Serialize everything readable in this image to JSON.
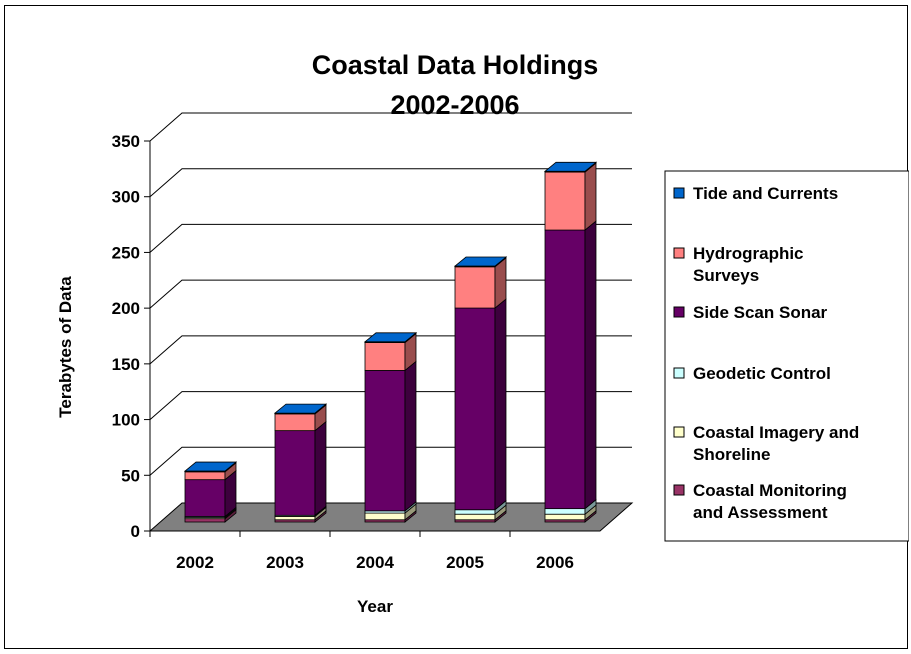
{
  "chart_data": {
    "type": "bar",
    "stacked": true,
    "three_d": true,
    "title": "Coastal Data Holdings",
    "subtitle": "2002-2006",
    "xlabel": "Year",
    "ylabel": "Terabytes of Data",
    "ylim": [
      0,
      350
    ],
    "yticks": [
      "0",
      "50",
      "100",
      "150",
      "200",
      "250",
      "300",
      "350"
    ],
    "categories": [
      "2002",
      "2003",
      "2004",
      "2005",
      "2006"
    ],
    "grid": true,
    "legend_position": "right",
    "series": [
      {
        "name": "Coastal Monitoring and Assessment",
        "color": "#993366",
        "values": [
          3,
          2,
          2,
          2,
          2
        ]
      },
      {
        "name": "Coastal Imagery and Shoreline",
        "color": "#FFFFCC",
        "values": [
          1,
          3,
          6,
          5,
          5
        ]
      },
      {
        "name": "Geodetic Control",
        "color": "#CCFFFF",
        "values": [
          1,
          1,
          2,
          4,
          5
        ]
      },
      {
        "name": "Side Scan Sonar",
        "color": "#660066",
        "values": [
          33,
          76,
          126,
          181,
          250
        ]
      },
      {
        "name": "Hydrographic Surveys",
        "color": "#FF8080",
        "values": [
          7,
          15,
          25,
          37,
          52
        ]
      },
      {
        "name": "Tide and Currents",
        "color": "#0066CC",
        "values": [
          0.5,
          0.5,
          0.5,
          0.5,
          0.5
        ]
      }
    ],
    "legend_order": [
      "Tide and Currents",
      "Hydrographic Surveys",
      "Side Scan Sonar",
      "Geodetic Control",
      "Coastal Imagery and Shoreline",
      "Coastal Monitoring and Assessment"
    ],
    "legend_lines": [
      [
        "Tide and Currents"
      ],
      [
        "Hydrographic",
        "Surveys"
      ],
      [
        "Side Scan Sonar"
      ],
      [
        "Geodetic Control"
      ],
      [
        "Coastal Imagery and",
        "Shoreline"
      ],
      [
        "Coastal Monitoring",
        "and Assessment"
      ]
    ]
  }
}
